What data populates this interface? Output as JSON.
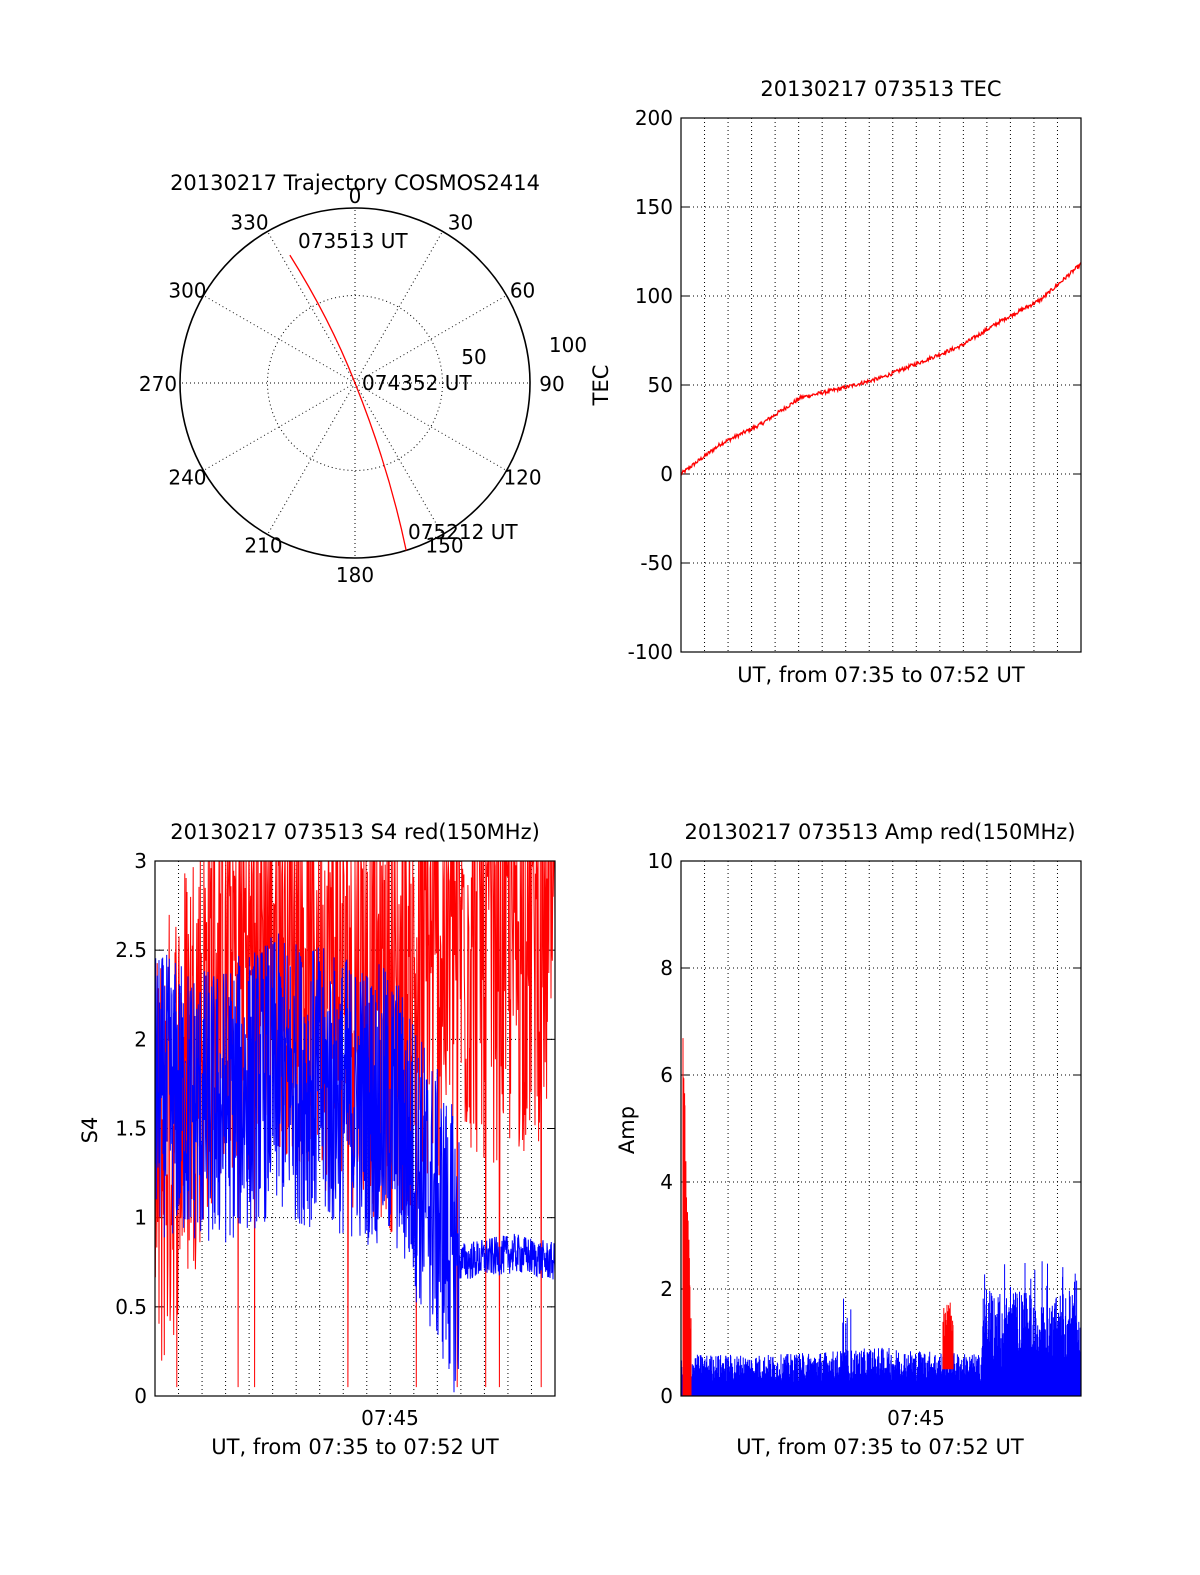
{
  "colors": {
    "primary": "#ff0000",
    "secondary": "#0000ff",
    "axis": "#000000"
  },
  "chart_data": [
    {
      "type": "polar",
      "title": "20130217 Trajectory COSMOS2414",
      "azimuth_labels": [
        "0",
        "30",
        "60",
        "90",
        "120",
        "150",
        "180",
        "210",
        "240",
        "270",
        "300",
        "330"
      ],
      "elevation_labels": [
        "50",
        "100"
      ],
      "rings": [
        0,
        50,
        100
      ],
      "trajectory": {
        "start": {
          "label": "073513 UT",
          "az": 333,
          "r": 82
        },
        "mid": {
          "label": "074352 UT",
          "az": 0,
          "r": 0
        },
        "end": {
          "label": "075212 UT",
          "az": 163,
          "r": 100
        }
      },
      "grid": true
    },
    {
      "type": "line",
      "title": "20130217 073513 TEC",
      "xlabel": "UT, from 07:35 to 07:52 UT",
      "ylabel": "TEC",
      "ylim": [
        -100,
        200
      ],
      "yticks": [
        "-100",
        "-50",
        "0",
        "50",
        "100",
        "150",
        "200"
      ],
      "grid": true,
      "series": [
        {
          "x": [
            0,
            0.1,
            0.2,
            0.3,
            0.4,
            0.5,
            0.6,
            0.7,
            0.8,
            0.9,
            1.0
          ],
          "values": [
            0,
            17,
            28,
            43,
            48,
            54,
            63,
            72,
            86,
            98,
            118
          ]
        }
      ]
    },
    {
      "type": "line",
      "title": "20130217 073513 S4 red(150MHz)",
      "xlabel": "UT, from 07:35 to 07:52 UT",
      "ylabel": "S4",
      "ylim": [
        0,
        3
      ],
      "yticks": [
        "0",
        "0.5",
        "1",
        "1.5",
        "2",
        "2.5",
        "3"
      ],
      "xticks": [
        "07:45"
      ],
      "grid": true,
      "series": [
        {
          "color_role": "primary",
          "x": [
            0,
            0.15,
            0.3,
            0.45,
            0.6,
            0.75,
            0.9,
            1.0
          ],
          "values": [
            1.2,
            2.4,
            2.7,
            2.4,
            2.2,
            2.6,
            2.6,
            2.8
          ]
        },
        {
          "color_role": "secondary",
          "x": [
            0,
            0.15,
            0.3,
            0.45,
            0.6,
            0.76,
            0.9,
            1.0
          ],
          "values": [
            1.7,
            1.6,
            1.8,
            1.7,
            1.6,
            0.75,
            0.8,
            0.75
          ]
        }
      ]
    },
    {
      "type": "line",
      "title": "20130217 073513 Amp red(150MHz)",
      "xlabel": "UT, from 07:35 to 07:52 UT",
      "ylabel": "Amp",
      "ylim": [
        0,
        10
      ],
      "yticks": [
        "0",
        "2",
        "4",
        "6",
        "8",
        "10"
      ],
      "xticks": [
        "07:45"
      ],
      "grid": true,
      "series": [
        {
          "color_role": "primary",
          "x": [
            0,
            0.02,
            0.66
          ],
          "values": [
            5.5,
            0.6,
            1.4
          ]
        },
        {
          "color_role": "secondary",
          "x": [
            0,
            0.25,
            0.5,
            0.75,
            0.76,
            1.0
          ],
          "values": [
            0.6,
            0.6,
            0.7,
            0.6,
            2.2,
            2.2
          ]
        }
      ]
    }
  ]
}
